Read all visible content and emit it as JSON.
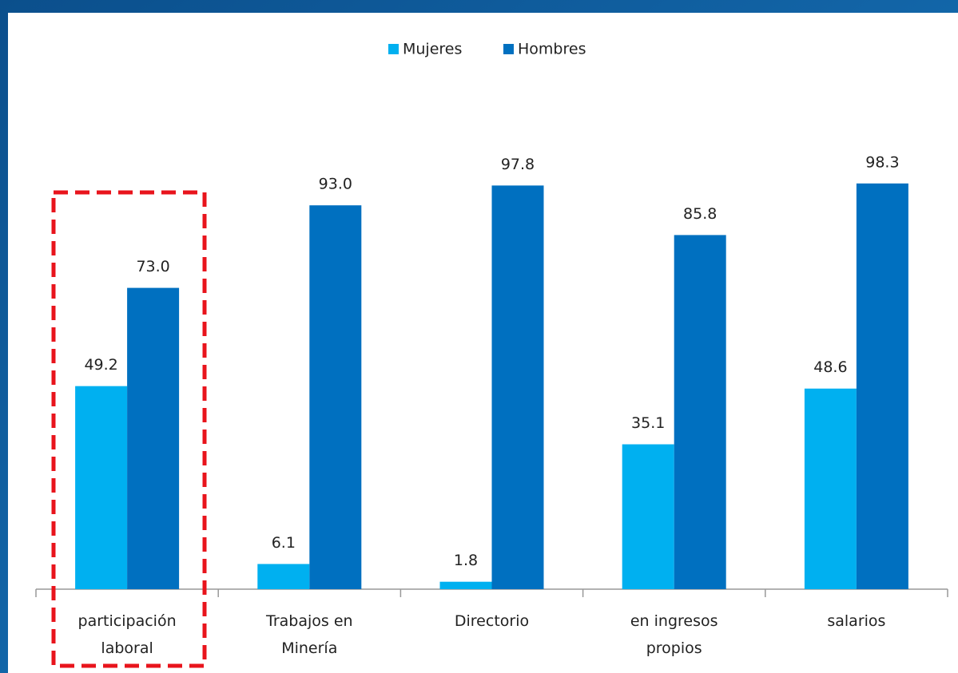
{
  "chart_data": {
    "type": "bar",
    "categories": [
      [
        "participación",
        "laboral"
      ],
      [
        "Trabajos en",
        "Minería"
      ],
      [
        "Directorio"
      ],
      [
        "en ingresos",
        "propios"
      ],
      [
        "salarios"
      ]
    ],
    "series": [
      {
        "name": "Mujeres",
        "color": "#00b0f0",
        "values": [
          49.2,
          6.1,
          1.8,
          35.1,
          48.6
        ],
        "value_labels": [
          "49.2",
          "6.1",
          "1.8",
          "35.1",
          "48.6"
        ]
      },
      {
        "name": "Hombres",
        "color": "#0070c0",
        "values": [
          73.0,
          93.0,
          97.8,
          85.8,
          98.3
        ],
        "value_labels": [
          "73.0",
          "93.0",
          "97.8",
          "85.8",
          "98.3"
        ]
      }
    ],
    "ylim": [
      0,
      100
    ],
    "legend": "top"
  }
}
